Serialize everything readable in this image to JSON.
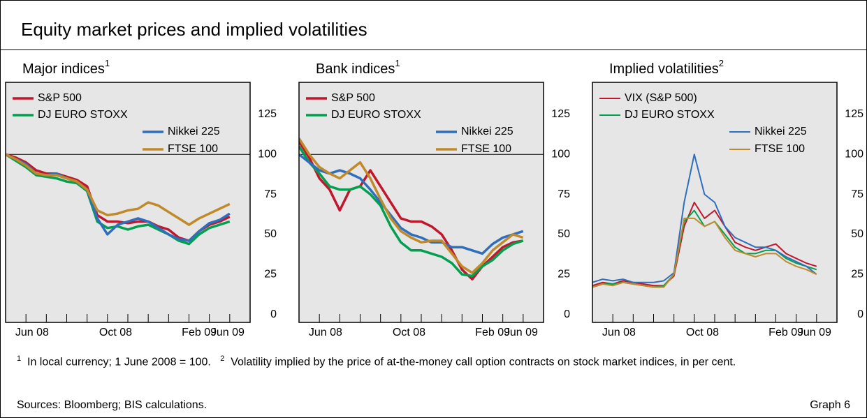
{
  "header": {
    "title": "Equity market prices and implied volatilities"
  },
  "chart_data": [
    {
      "type": "line",
      "title": "Major indices",
      "title_note": "1",
      "line_width": 3.5,
      "refline": 100,
      "x": [
        0,
        0.5,
        1,
        1.5,
        2,
        2.5,
        3,
        3.5,
        4,
        4.5,
        5,
        5.5,
        6,
        6.5,
        7,
        7.5,
        8,
        8.5,
        9,
        9.5,
        10,
        10.5,
        11
      ],
      "xlim": [
        0,
        12
      ],
      "ylim": [
        -5,
        145
      ],
      "yticks": [
        0,
        25,
        50,
        75,
        100,
        125
      ],
      "minor_xticks": [
        1,
        2,
        3,
        4,
        5,
        6,
        7,
        8,
        9,
        10,
        11
      ],
      "xticks": [
        {
          "value": 1.3,
          "label": "Jun 08"
        },
        {
          "value": 5.4,
          "label": "Oct 08"
        },
        {
          "value": 9.5,
          "label": "Feb 09"
        },
        {
          "value": 10.9,
          "label": "Jun 09"
        }
      ],
      "series": [
        {
          "name": "S&P 500",
          "color": "#c0172d",
          "values": [
            100,
            98,
            95,
            90,
            88,
            88,
            86,
            84,
            80,
            62,
            58,
            58,
            57,
            58,
            58,
            55,
            53,
            48,
            46,
            52,
            56,
            58,
            61
          ]
        },
        {
          "name": "DJ EURO STOXX",
          "color": "#00a050",
          "values": [
            100,
            96,
            92,
            87,
            86,
            85,
            83,
            82,
            77,
            58,
            54,
            55,
            53,
            55,
            56,
            53,
            50,
            46,
            44,
            50,
            54,
            56,
            58
          ]
        },
        {
          "name": "Nikkei 225",
          "color": "#2f6ebd",
          "values": [
            100,
            97,
            94,
            88,
            87,
            88,
            85,
            83,
            78,
            60,
            50,
            56,
            58,
            60,
            58,
            54,
            50,
            47,
            46,
            52,
            57,
            59,
            63
          ]
        },
        {
          "name": "FTSE 100",
          "color": "#c08a2a",
          "values": [
            100,
            97,
            93,
            88,
            87,
            87,
            85,
            83,
            78,
            65,
            62,
            63,
            65,
            66,
            70,
            68,
            64,
            60,
            56,
            60,
            63,
            66,
            69
          ]
        }
      ]
    },
    {
      "type": "line",
      "title": "Bank indices",
      "title_note": "1",
      "line_width": 3.5,
      "refline": 100,
      "x": [
        0,
        0.5,
        1,
        1.5,
        2,
        2.5,
        3,
        3.5,
        4,
        4.5,
        5,
        5.5,
        6,
        6.5,
        7,
        7.5,
        8,
        8.5,
        9,
        9.5,
        10,
        10.5,
        11
      ],
      "xlim": [
        0,
        12
      ],
      "ylim": [
        -5,
        145
      ],
      "yticks": [
        0,
        25,
        50,
        75,
        100,
        125
      ],
      "minor_xticks": [
        1,
        2,
        3,
        4,
        5,
        6,
        7,
        8,
        9,
        10,
        11
      ],
      "xticks": [
        {
          "value": 1.3,
          "label": "Jun 08"
        },
        {
          "value": 5.4,
          "label": "Oct 08"
        },
        {
          "value": 9.5,
          "label": "Feb 09"
        },
        {
          "value": 10.9,
          "label": "Jun 09"
        }
      ],
      "series": [
        {
          "name": "S&P 500",
          "color": "#c0172d",
          "values": [
            108,
            98,
            85,
            78,
            65,
            78,
            80,
            90,
            80,
            70,
            60,
            58,
            58,
            55,
            50,
            40,
            28,
            22,
            30,
            36,
            42,
            45,
            46
          ]
        },
        {
          "name": "DJ EURO STOXX",
          "color": "#00a050",
          "values": [
            105,
            95,
            88,
            80,
            78,
            78,
            80,
            75,
            68,
            55,
            45,
            40,
            40,
            38,
            36,
            32,
            25,
            24,
            30,
            34,
            40,
            44,
            46
          ]
        },
        {
          "name": "Nikkei 225",
          "color": "#2f6ebd",
          "values": [
            100,
            95,
            90,
            88,
            90,
            88,
            85,
            78,
            70,
            62,
            54,
            50,
            48,
            45,
            45,
            42,
            42,
            40,
            38,
            44,
            48,
            50,
            52
          ]
        },
        {
          "name": "FTSE 100",
          "color": "#c08a2a",
          "values": [
            110,
            100,
            92,
            88,
            85,
            90,
            95,
            85,
            72,
            60,
            52,
            48,
            45,
            46,
            46,
            38,
            30,
            26,
            32,
            40,
            45,
            50,
            48
          ]
        }
      ]
    },
    {
      "type": "line",
      "title": "Implied volatilities",
      "title_note": "2",
      "line_width": 2,
      "x": [
        0,
        0.5,
        1,
        1.5,
        2,
        2.5,
        3,
        3.5,
        4,
        4.5,
        5,
        5.5,
        6,
        6.5,
        7,
        7.5,
        8,
        8.5,
        9,
        9.5,
        10,
        10.5,
        11
      ],
      "xlim": [
        0,
        12
      ],
      "ylim": [
        -5,
        145
      ],
      "yticks": [
        0,
        25,
        50,
        75,
        100,
        125
      ],
      "minor_xticks": [
        1,
        2,
        3,
        4,
        5,
        6,
        7,
        8,
        9,
        10,
        11
      ],
      "xticks": [
        {
          "value": 1.3,
          "label": "Jun 08"
        },
        {
          "value": 5.4,
          "label": "Oct 08"
        },
        {
          "value": 9.5,
          "label": "Feb 09"
        },
        {
          "value": 10.9,
          "label": "Jun 09"
        }
      ],
      "series": [
        {
          "name": "VIX (S&P 500)",
          "color": "#c0172d",
          "values": [
            18,
            20,
            19,
            21,
            20,
            19,
            18,
            18,
            24,
            55,
            70,
            60,
            65,
            55,
            45,
            42,
            40,
            42,
            44,
            38,
            35,
            32,
            30
          ]
        },
        {
          "name": "DJ EURO STOXX",
          "color": "#00a050",
          "values": [
            17,
            19,
            19,
            20,
            19,
            18,
            17,
            18,
            25,
            58,
            65,
            55,
            58,
            50,
            42,
            38,
            38,
            40,
            40,
            35,
            32,
            30,
            28
          ]
        },
        {
          "name": "Nikkei 225",
          "color": "#2f6ebd",
          "values": [
            20,
            22,
            21,
            22,
            20,
            20,
            20,
            21,
            26,
            70,
            100,
            75,
            70,
            55,
            48,
            45,
            42,
            42,
            40,
            36,
            33,
            30,
            25
          ]
        },
        {
          "name": "FTSE 100",
          "color": "#c08a2a",
          "values": [
            17,
            19,
            18,
            20,
            19,
            18,
            17,
            17,
            25,
            60,
            60,
            55,
            58,
            48,
            40,
            38,
            36,
            38,
            38,
            33,
            30,
            28,
            25
          ]
        }
      ]
    }
  ],
  "footnotes": [
    {
      "marker": "1",
      "text": "In local currency; 1 June 2008 = 100."
    },
    {
      "marker": "2",
      "text": "Volatility implied by the price of at-the-money call option contracts on stock market indices, in per cent."
    }
  ],
  "sources": "Sources: Bloomberg; BIS calculations.",
  "graph_label": "Graph 6"
}
